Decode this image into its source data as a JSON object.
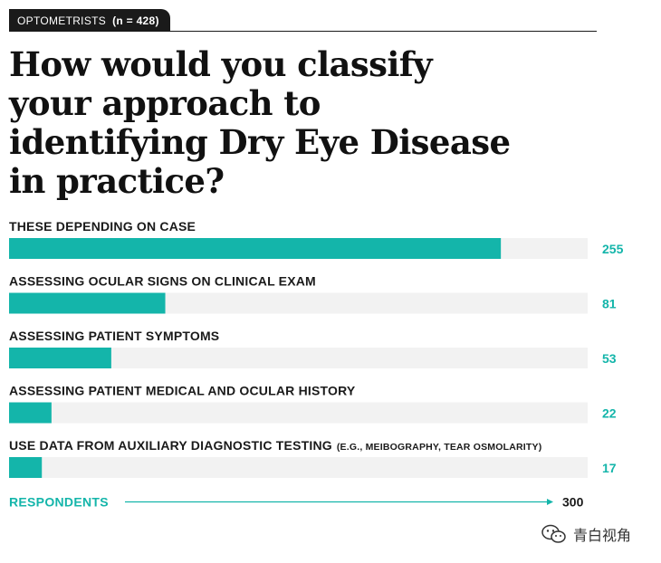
{
  "header": {
    "group": "OPTOMETRISTS",
    "sample": "(n = 428)"
  },
  "title": "How would you classify your approach to identifying Dry Eye Disease in practice?",
  "colors": {
    "bar": "#14b5aa",
    "track": "#f2f2f2",
    "value_text": "#14b5aa",
    "text": "#1a1a1a"
  },
  "chart_data": {
    "type": "bar",
    "orientation": "horizontal",
    "categories": [
      "THESE DEPENDING ON CASE",
      "ASSESSING OCULAR SIGNS ON CLINICAL EXAM",
      "ASSESSING PATIENT SYMPTOMS",
      "ASSESSING PATIENT MEDICAL AND OCULAR HISTORY",
      "USE DATA FROM AUXILIARY DIAGNOSTIC TESTING"
    ],
    "category_notes": [
      "",
      "",
      "",
      "",
      "(E.G., MEIBOGRAPHY, TEAR OSMOLARITY)"
    ],
    "values": [
      255,
      81,
      53,
      22,
      17
    ],
    "value_labels": [
      "255",
      "81",
      "53",
      "22",
      "17"
    ],
    "xlim": [
      0,
      300
    ],
    "axis_label": "RESPONDENTS",
    "axis_max_label": "300"
  },
  "watermark": {
    "text": "青白视角",
    "icon": "wechat-icon"
  }
}
